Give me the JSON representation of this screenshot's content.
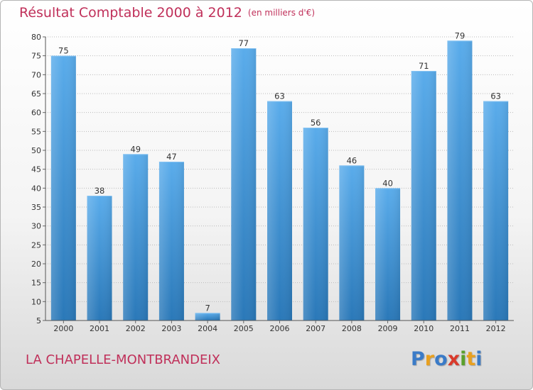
{
  "title": "Résultat Comptable 2000 à 2012",
  "subtitle": "(en milliers d'€)",
  "place": "LA CHAPELLE-MONTBRANDEIX",
  "logo": {
    "letters": [
      "P",
      "r",
      "o",
      "x",
      "i",
      "t",
      "i"
    ],
    "colors": [
      "#3a7bc8",
      "#e8a020",
      "#3a7bc8",
      "#d93a2b",
      "#5aa02c",
      "#e8a020",
      "#3a7bc8"
    ]
  },
  "colors": {
    "bar_top": "#5aaceb",
    "bar_bottom": "#2a78b8",
    "title": "#c0305a",
    "grid": "#bbbbbb",
    "axis_text": "#333333"
  },
  "chart_data": {
    "type": "bar",
    "title": "Résultat Comptable 2000 à 2012",
    "subtitle": "(en milliers d'€)",
    "categories": [
      "2000",
      "2001",
      "2002",
      "2003",
      "2004",
      "2005",
      "2006",
      "2007",
      "2008",
      "2009",
      "2010",
      "2011",
      "2012"
    ],
    "values": [
      75,
      38,
      49,
      47,
      7,
      77,
      63,
      56,
      46,
      40,
      71,
      79,
      63
    ],
    "ylim": [
      5,
      80
    ],
    "yticks": [
      5,
      10,
      15,
      20,
      25,
      30,
      35,
      40,
      45,
      50,
      55,
      60,
      65,
      70,
      75,
      80
    ],
    "grid": true,
    "xlabel": "",
    "ylabel": ""
  }
}
